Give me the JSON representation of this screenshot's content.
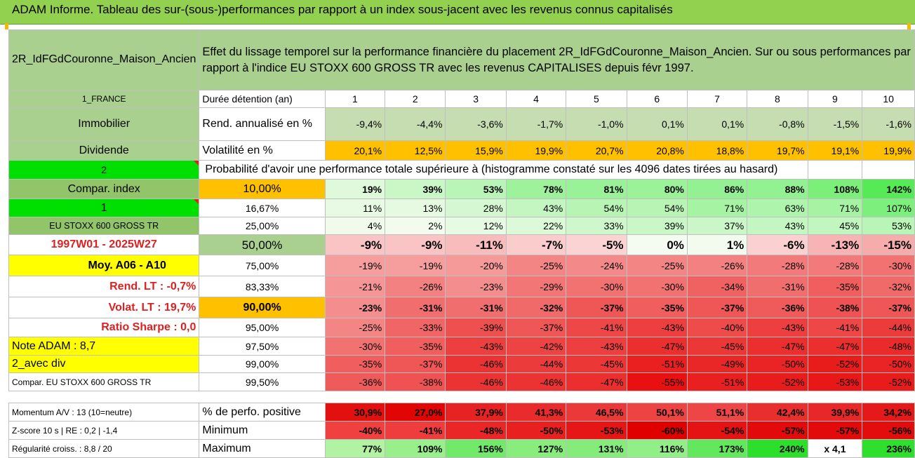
{
  "title": "ADAM Informe. Tableau des sur-(sous-)performances par rapport à un index sous-jacent avec les revenus connus capitalisés",
  "asset_name": "2R_IdFGdCouronne_Maison_Ancien",
  "description": "Effet du lissage temporel sur la performance financière du placement 2R_IdFGdCouronne_Maison_Ancien. Sur ou sous performances par rapport à l'indice EU STOXX 600 GROSS TR avec les revenus CAPITALISES depuis févr 1997.",
  "left": {
    "country": "1_FRANCE",
    "category": "Immobilier",
    "dividend": "Dividende",
    "num2": "2",
    "compar_index": "Compar. index",
    "num1": "1",
    "index_name": "EU STOXX 600 GROSS TR",
    "period": "1997W01 - 2025W27",
    "moy": "Moy. A06 - A10",
    "rend_lt": "Rend. LT :    -0,7%",
    "volat_lt": "Volat. LT :    19,7%",
    "sharpe": "Ratio Sharpe :    0,0",
    "note": "Note ADAM : 8,7",
    "avec_div": "2_avec div",
    "compar_full": "Compar. EU STOXX 600 GROSS TR"
  },
  "header_rows": {
    "duration_label": "Durée détention (an)",
    "durations": [
      "1",
      "2",
      "3",
      "4",
      "5",
      "6",
      "7",
      "8",
      "9",
      "10"
    ],
    "rend_label": "Rend. annualisé en %",
    "rend_values": [
      "-9,4%",
      "-4,4%",
      "-3,6%",
      "-1,7%",
      "-1,0%",
      "0,1%",
      "0,1%",
      "-0,8%",
      "-1,5%",
      "-1,6%"
    ],
    "vol_label": "Volatilité en %",
    "vol_values": [
      "20,1%",
      "12,5%",
      "15,9%",
      "19,9%",
      "20,7%",
      "20,8%",
      "18,8%",
      "19,7%",
      "19,1%",
      "19,9%"
    ]
  },
  "prob_title": "Probabilité d'avoir une performance totale supérieure à (histogramme constaté sur les 4096 dates tirées au hasard)",
  "prob_rows": [
    {
      "pct": "10,00%",
      "values": [
        "19%",
        "39%",
        "53%",
        "78%",
        "81%",
        "80%",
        "86%",
        "88%",
        "108%",
        "142%"
      ]
    },
    {
      "pct": "16,67%",
      "values": [
        "11%",
        "13%",
        "28%",
        "43%",
        "54%",
        "54%",
        "71%",
        "63%",
        "71%",
        "107%"
      ]
    },
    {
      "pct": "25,00%",
      "values": [
        "4%",
        "2%",
        "12%",
        "22%",
        "33%",
        "39%",
        "37%",
        "43%",
        "45%",
        "53%"
      ]
    },
    {
      "pct": "50,00%",
      "values": [
        "-9%",
        "-9%",
        "-11%",
        "-7%",
        "-5%",
        "0%",
        "1%",
        "-6%",
        "-13%",
        "-15%"
      ]
    },
    {
      "pct": "75,00%",
      "values": [
        "-19%",
        "-19%",
        "-20%",
        "-25%",
        "-24%",
        "-25%",
        "-26%",
        "-28%",
        "-28%",
        "-30%"
      ]
    },
    {
      "pct": "83,33%",
      "values": [
        "-21%",
        "-26%",
        "-23%",
        "-29%",
        "-30%",
        "-30%",
        "-34%",
        "-31%",
        "-35%",
        "-32%"
      ]
    },
    {
      "pct": "90,00%",
      "values": [
        "-23%",
        "-31%",
        "-31%",
        "-32%",
        "-37%",
        "-35%",
        "-37%",
        "-36%",
        "-38%",
        "-37%"
      ]
    },
    {
      "pct": "95,00%",
      "values": [
        "-25%",
        "-33%",
        "-39%",
        "-37%",
        "-41%",
        "-43%",
        "-40%",
        "-43%",
        "-41%",
        "-44%"
      ]
    },
    {
      "pct": "97,50%",
      "values": [
        "-30%",
        "-35%",
        "-43%",
        "-42%",
        "-43%",
        "-47%",
        "-45%",
        "-47%",
        "-47%",
        "-48%"
      ]
    },
    {
      "pct": "99,00%",
      "values": [
        "-35%",
        "-37%",
        "-46%",
        "-44%",
        "-45%",
        "-51%",
        "-49%",
        "-50%",
        "-52%",
        "-50%"
      ]
    },
    {
      "pct": "99,50%",
      "values": [
        "-36%",
        "-38%",
        "-46%",
        "-46%",
        "-47%",
        "-55%",
        "-51%",
        "-52%",
        "-53%",
        "-52%"
      ]
    }
  ],
  "bottom": {
    "momentum": "Momentum A/V : 13 (10=neutre)",
    "zscore": "Z-score 10 s | RE : 0,2 | -1,4",
    "regularite": "Régularité croiss. : 8,8 / 20",
    "pos_label": "% de perfo. positive",
    "pos_values": [
      "30,9%",
      "27,0%",
      "37,9%",
      "41,3%",
      "46,5%",
      "50,1%",
      "51,1%",
      "42,4%",
      "39,9%",
      "34,2%"
    ],
    "min_label": "Minimum",
    "min_values": [
      "-40%",
      "-41%",
      "-48%",
      "-50%",
      "-53%",
      "-60%",
      "-54%",
      "-57%",
      "-57%",
      "-56%"
    ],
    "max_label": "Maximum",
    "max_values": [
      "77%",
      "109%",
      "156%",
      "127%",
      "131%",
      "116%",
      "173%",
      "240%",
      "x 4,1",
      "236%"
    ]
  },
  "colors": {
    "header_green": "#92d050",
    "orange": "#ffc000",
    "yellow": "#ffff00",
    "positive_green": "#63be7b",
    "negative_red": "#f8696b"
  }
}
